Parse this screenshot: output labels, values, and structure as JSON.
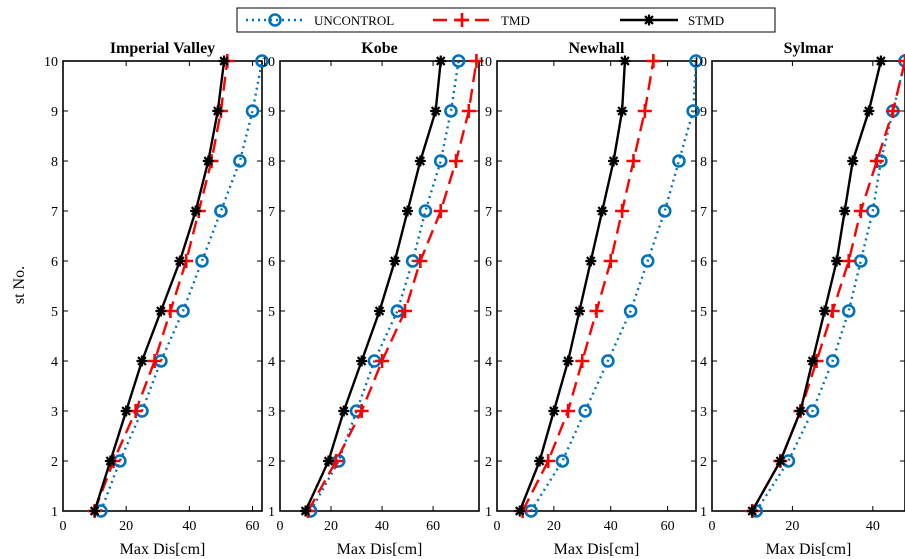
{
  "chart_data": {
    "type": "line",
    "ylabel": "st No.",
    "xlabel": "Max Dis[cm]",
    "legend_position": "top-center",
    "legend": [
      {
        "name": "UNCONTROL",
        "color": "#0072BD",
        "style": "dotted",
        "marker": "circle"
      },
      {
        "name": "TMD",
        "color": "#FF0000",
        "style": "dashed",
        "marker": "plus"
      },
      {
        "name": "STMD",
        "color": "#000000",
        "style": "solid",
        "marker": "asterisk"
      }
    ],
    "y_ticks": [
      "1",
      "2",
      "3",
      "4",
      "5",
      "6",
      "7",
      "8",
      "9",
      "10"
    ],
    "stories": [
      1,
      2,
      3,
      4,
      5,
      6,
      7,
      8,
      9,
      10
    ],
    "panels": [
      {
        "title": "Imperial Valley",
        "xlim": [
          0,
          63
        ],
        "x_ticks": [
          "0",
          "20",
          "40",
          "60"
        ],
        "x_tick_values": [
          0,
          20,
          40,
          60
        ],
        "series": [
          {
            "name": "UNCONTROL",
            "values": [
              12,
              18,
              25,
              31,
              38,
              44,
              50,
              56,
              60,
              63
            ]
          },
          {
            "name": "TMD",
            "values": [
              10,
              16,
              23,
              29,
              34,
              39,
              43,
              47,
              50,
              52
            ]
          },
          {
            "name": "STMD",
            "values": [
              10,
              15,
              20,
              25,
              31,
              37,
              42,
              46,
              49,
              51
            ]
          }
        ]
      },
      {
        "title": "Kobe",
        "xlim": [
          0,
          78
        ],
        "x_ticks": [
          "0",
          "20",
          "40",
          "60"
        ],
        "x_tick_values": [
          0,
          20,
          40,
          60
        ],
        "series": [
          {
            "name": "UNCONTROL",
            "values": [
              12,
              23,
              30,
              37,
              46,
              52,
              57,
              63,
              67,
              70
            ]
          },
          {
            "name": "TMD",
            "values": [
              11,
              22,
              32,
              40,
              49,
              55,
              63,
              69,
              74,
              77
            ]
          },
          {
            "name": "STMD",
            "values": [
              10,
              19,
              25,
              32,
              39,
              45,
              50,
              55,
              61,
              63
            ]
          }
        ]
      },
      {
        "title": "Newhall",
        "xlim": [
          0,
          70
        ],
        "x_ticks": [
          "0",
          "20",
          "40",
          "60"
        ],
        "x_tick_values": [
          0,
          20,
          40,
          60
        ],
        "series": [
          {
            "name": "UNCONTROL",
            "values": [
              12,
              23,
              31,
              39,
              47,
              53,
              59,
              64,
              69,
              70
            ]
          },
          {
            "name": "TMD",
            "values": [
              9,
              18,
              25,
              30,
              35,
              40,
              44,
              48,
              52,
              55
            ]
          },
          {
            "name": "STMD",
            "values": [
              8,
              15,
              20,
              25,
              29,
              33,
              37,
              41,
              44,
              45
            ]
          }
        ]
      },
      {
        "title": "Sylmar",
        "xlim": [
          0,
          48
        ],
        "x_ticks": [
          "0",
          "20",
          "40"
        ],
        "x_tick_values": [
          0,
          20,
          40
        ],
        "series": [
          {
            "name": "UNCONTROL",
            "values": [
              11,
              19,
              25,
              30,
              34,
              37,
              40,
              42,
              45,
              48
            ]
          },
          {
            "name": "TMD",
            "values": [
              10,
              17,
              22,
              26,
              30,
              34,
              37,
              41,
              45,
              48
            ]
          },
          {
            "name": "STMD",
            "values": [
              10,
              17,
              22,
              25,
              28,
              31,
              33,
              35,
              39,
              42
            ]
          }
        ]
      }
    ]
  }
}
